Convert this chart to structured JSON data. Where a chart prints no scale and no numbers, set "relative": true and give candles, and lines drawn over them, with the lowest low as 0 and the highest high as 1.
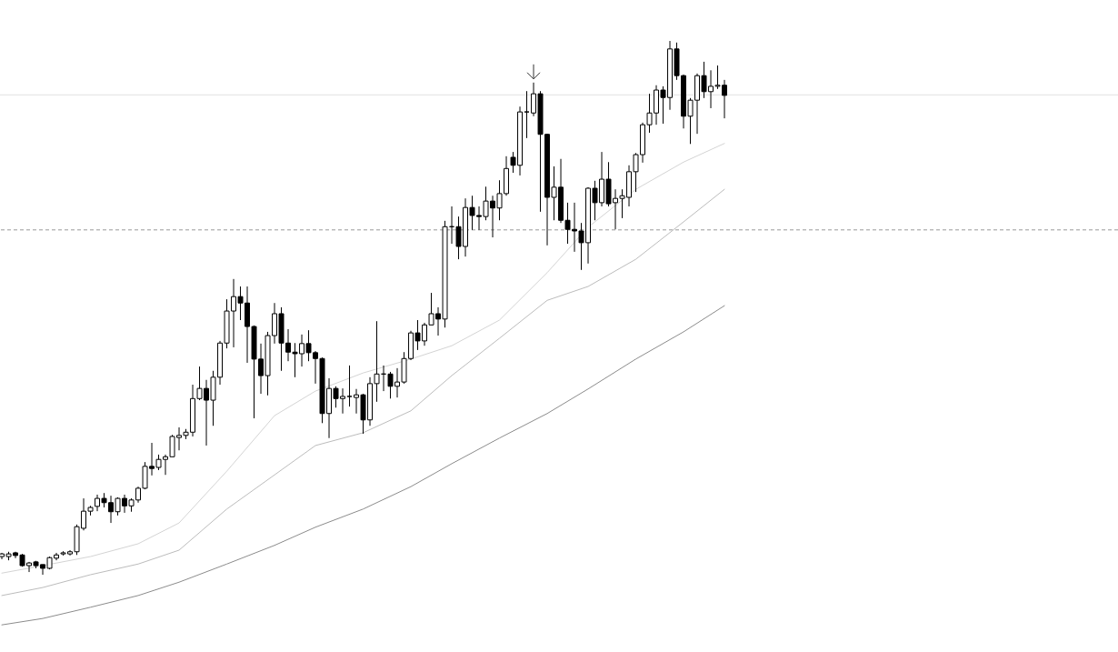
{
  "chart_data": {
    "type": "candlestick",
    "relative": true,
    "categories": [
      null,
      null,
      null,
      null,
      null,
      null,
      null,
      null,
      null,
      null,
      null,
      null,
      null,
      null,
      null,
      null,
      null,
      null,
      null,
      null,
      null,
      null,
      null,
      null,
      null,
      null,
      null,
      null,
      null,
      null,
      null,
      null,
      null,
      null,
      null,
      null,
      null,
      null,
      null,
      null,
      null,
      null,
      null,
      null,
      null,
      null,
      null,
      null,
      null,
      null,
      null,
      null,
      null,
      null,
      null,
      null,
      null,
      null,
      null,
      null,
      null,
      null,
      null,
      null,
      null,
      null,
      null,
      null,
      null,
      null,
      null,
      null,
      null,
      null,
      null,
      null,
      null,
      null,
      null,
      null,
      null,
      null,
      null,
      null,
      null,
      null,
      null,
      null,
      null,
      null,
      null,
      null,
      null,
      null,
      null,
      null,
      null,
      null,
      null,
      null,
      null,
      null,
      null,
      null,
      null,
      null,
      null
    ],
    "ohlc": [
      [
        0.034,
        0.041,
        0.029,
        0.039
      ],
      [
        0.034,
        0.043,
        0.027,
        0.039
      ],
      [
        0.041,
        0.043,
        0.031,
        0.036
      ],
      [
        0.037,
        0.039,
        0.015,
        0.017
      ],
      [
        0.017,
        0.024,
        0.005,
        0.022
      ],
      [
        0.024,
        0.026,
        0.012,
        0.017
      ],
      [
        0.019,
        0.019,
        0,
        0.012
      ],
      [
        0.012,
        0.034,
        0.01,
        0.032
      ],
      [
        0.031,
        0.041,
        0.027,
        0.037
      ],
      [
        0.039,
        0.044,
        0.036,
        0.041
      ],
      [
        0.039,
        0.046,
        0.036,
        0.043
      ],
      [
        0.043,
        0.094,
        0.037,
        0.09
      ],
      [
        0.087,
        0.143,
        0.083,
        0.119
      ],
      [
        0.119,
        0.129,
        0.111,
        0.126
      ],
      [
        0.128,
        0.15,
        0.119,
        0.143
      ],
      [
        0.143,
        0.153,
        0.126,
        0.135
      ],
      [
        0.135,
        0.148,
        0.097,
        0.118
      ],
      [
        0.118,
        0.145,
        0.111,
        0.143
      ],
      [
        0.143,
        0.15,
        0.116,
        0.129
      ],
      [
        0.129,
        0.143,
        0.118,
        0.14
      ],
      [
        0.14,
        0.165,
        0.135,
        0.162
      ],
      [
        0.162,
        0.211,
        0.16,
        0.203
      ],
      [
        0.203,
        0.247,
        0.186,
        0.199
      ],
      [
        0.201,
        0.225,
        0.196,
        0.216
      ],
      [
        0.216,
        0.225,
        0.187,
        0.221
      ],
      [
        0.221,
        0.262,
        0.221,
        0.259
      ],
      [
        0.257,
        0.276,
        0.233,
        0.261
      ],
      [
        0.261,
        0.273,
        0.254,
        0.267
      ],
      [
        0.267,
        0.356,
        0.259,
        0.33
      ],
      [
        0.33,
        0.39,
        0.327,
        0.349
      ],
      [
        0.349,
        0.365,
        0.242,
        0.327
      ],
      [
        0.327,
        0.382,
        0.279,
        0.37
      ],
      [
        0.37,
        0.438,
        0.356,
        0.434
      ],
      [
        0.434,
        0.516,
        0.424,
        0.494
      ],
      [
        0.494,
        0.554,
        0.426,
        0.521
      ],
      [
        0.521,
        0.54,
        0.477,
        0.509
      ],
      [
        0.509,
        0.54,
        0.397,
        0.465
      ],
      [
        0.465,
        0.467,
        0.293,
        0.404
      ],
      [
        0.404,
        0.433,
        0.339,
        0.373
      ],
      [
        0.373,
        0.455,
        0.336,
        0.448
      ],
      [
        0.448,
        0.509,
        0.433,
        0.489
      ],
      [
        0.489,
        0.501,
        0.382,
        0.434
      ],
      [
        0.434,
        0.46,
        0.4,
        0.417
      ],
      [
        0.417,
        0.434,
        0.37,
        0.414
      ],
      [
        0.414,
        0.45,
        0.39,
        0.433
      ],
      [
        0.433,
        0.458,
        0.4,
        0.416
      ],
      [
        0.416,
        0.419,
        0.358,
        0.405
      ],
      [
        0.405,
        0.407,
        0.284,
        0.302
      ],
      [
        0.302,
        0.368,
        0.256,
        0.349
      ],
      [
        0.349,
        0.353,
        0.313,
        0.33
      ],
      [
        0.33,
        0.349,
        0.302,
        0.334
      ],
      [
        0.334,
        0.392,
        0.315,
        0.334
      ],
      [
        0.332,
        0.348,
        0.302,
        0.337
      ],
      [
        0.337,
        0.339,
        0.264,
        0.29
      ],
      [
        0.29,
        0.37,
        0.279,
        0.358
      ],
      [
        0.358,
        0.475,
        0.324,
        0.376
      ],
      [
        0.376,
        0.392,
        0.344,
        0.376
      ],
      [
        0.376,
        0.38,
        0.33,
        0.353
      ],
      [
        0.353,
        0.387,
        0.332,
        0.361
      ],
      [
        0.361,
        0.417,
        0.358,
        0.405
      ],
      [
        0.405,
        0.457,
        0.402,
        0.453
      ],
      [
        0.453,
        0.477,
        0.421,
        0.438
      ],
      [
        0.438,
        0.472,
        0.429,
        0.468
      ],
      [
        0.468,
        0.528,
        0.468,
        0.489
      ],
      [
        0.489,
        0.501,
        0.448,
        0.479
      ],
      [
        0.479,
        0.663,
        0.463,
        0.652
      ],
      [
        0.652,
        0.69,
        0.62,
        0.652
      ],
      [
        0.652,
        0.671,
        0.591,
        0.615
      ],
      [
        0.615,
        0.705,
        0.596,
        0.688
      ],
      [
        0.688,
        0.71,
        0.646,
        0.673
      ],
      [
        0.673,
        0.69,
        0.646,
        0.671
      ],
      [
        0.671,
        0.727,
        0.664,
        0.7
      ],
      [
        0.7,
        0.71,
        0.632,
        0.687
      ],
      [
        0.687,
        0.739,
        0.664,
        0.714
      ],
      [
        0.714,
        0.784,
        0.71,
        0.761
      ],
      [
        0.782,
        0.792,
        0.753,
        0.767
      ],
      [
        0.767,
        0.877,
        0.748,
        0.867
      ],
      [
        0.867,
        0.906,
        0.818,
        0.867
      ],
      [
        0.865,
        0.922,
        0.859,
        0.901
      ],
      [
        0.901,
        0.906,
        0.68,
        0.825
      ],
      [
        0.825,
        0.826,
        0.617,
        0.707
      ],
      [
        0.707,
        0.765,
        0.664,
        0.726
      ],
      [
        0.726,
        0.779,
        0.659,
        0.664
      ],
      [
        0.664,
        0.697,
        0.62,
        0.647
      ],
      [
        0.647,
        0.697,
        0.605,
        0.644
      ],
      [
        0.644,
        0.659,
        0.571,
        0.622
      ],
      [
        0.622,
        0.726,
        0.583,
        0.724
      ],
      [
        0.724,
        0.738,
        0.664,
        0.697
      ],
      [
        0.697,
        0.792,
        0.69,
        0.741
      ],
      [
        0.741,
        0.773,
        0.69,
        0.695
      ],
      [
        0.697,
        0.722,
        0.647,
        0.705
      ],
      [
        0.705,
        0.722,
        0.668,
        0.71
      ],
      [
        0.707,
        0.767,
        0.69,
        0.755
      ],
      [
        0.755,
        0.79,
        0.717,
        0.787
      ],
      [
        0.787,
        0.847,
        0.772,
        0.843
      ],
      [
        0.843,
        0.901,
        0.828,
        0.865
      ],
      [
        0.865,
        0.917,
        0.843,
        0.908
      ],
      [
        0.908,
        0.915,
        0.845,
        0.894
      ],
      [
        0.894,
        1,
        0.871,
        0.985
      ],
      [
        0.985,
        0.997,
        0.927,
        0.935
      ],
      [
        0.935,
        0.937,
        0.836,
        0.859
      ],
      [
        0.859,
        0.893,
        0.807,
        0.889
      ],
      [
        0.889,
        0.939,
        0.826,
        0.935
      ],
      [
        0.935,
        0.961,
        0.893,
        0.905
      ],
      [
        0.905,
        0.945,
        0.874,
        0.915
      ],
      [
        0.915,
        0.954,
        0.91,
        0.917
      ],
      [
        0.917,
        0.927,
        0.855,
        0.898
      ]
    ],
    "series": [
      {
        "type": "line",
        "color": "#d4d4d4",
        "values": [
          0.003,
          null,
          null,
          null,
          null,
          null,
          0.017,
          null,
          null,
          null,
          null,
          null,
          null,
          0.034,
          null,
          null,
          null,
          null,
          null,
          null,
          0.058,
          null,
          null,
          null,
          null,
          null,
          0.097,
          null,
          null,
          null,
          null,
          null,
          null,
          0.194,
          null,
          null,
          null,
          null,
          null,
          null,
          0.298,
          null,
          null,
          null,
          null,
          null,
          0.344,
          null,
          null,
          null,
          null,
          null,
          null,
          0.378,
          null,
          null,
          null,
          null,
          null,
          null,
          0.404,
          null,
          null,
          null,
          null,
          null,
          0.429,
          null,
          null,
          null,
          null,
          null,
          null,
          0.477,
          null,
          null,
          null,
          null,
          null,
          null,
          0.566,
          null,
          null,
          null,
          null,
          null,
          0.651,
          null,
          null,
          null,
          null,
          null,
          null,
          0.722,
          null,
          null,
          null,
          null,
          null,
          null,
          0.773,
          null,
          null,
          null,
          null,
          null,
          0.808
        ]
      },
      {
        "type": "line",
        "color": "#bcbcbc",
        "values": [
          -0.039,
          null,
          null,
          null,
          null,
          null,
          -0.024,
          null,
          null,
          null,
          null,
          null,
          null,
          0,
          null,
          null,
          null,
          null,
          null,
          null,
          0.02,
          null,
          null,
          null,
          null,
          null,
          0.046,
          null,
          null,
          null,
          null,
          null,
          null,
          0.123,
          null,
          null,
          null,
          null,
          null,
          null,
          0.187,
          null,
          null,
          null,
          null,
          null,
          0.242,
          null,
          null,
          null,
          null,
          null,
          null,
          0.266,
          null,
          null,
          null,
          null,
          null,
          null,
          0.307,
          null,
          null,
          null,
          null,
          null,
          0.373,
          null,
          null,
          null,
          null,
          null,
          null,
          0.443,
          null,
          null,
          null,
          null,
          null,
          null,
          0.514,
          null,
          null,
          null,
          null,
          null,
          0.54,
          null,
          null,
          null,
          null,
          null,
          null,
          0.591,
          null,
          null,
          null,
          null,
          null,
          null,
          0.661,
          null,
          null,
          null,
          null,
          null,
          0.722
        ]
      },
      {
        "type": "line",
        "color": "#8c8c8c",
        "values": [
          -0.094,
          null,
          null,
          null,
          null,
          null,
          -0.082,
          null,
          null,
          null,
          null,
          null,
          null,
          -0.061,
          null,
          null,
          null,
          null,
          null,
          null,
          -0.039,
          null,
          null,
          null,
          null,
          null,
          -0.014,
          null,
          null,
          null,
          null,
          null,
          null,
          0.02,
          null,
          null,
          null,
          null,
          null,
          null,
          0.055,
          null,
          null,
          null,
          null,
          null,
          0.089,
          null,
          null,
          null,
          null,
          null,
          null,
          0.123,
          null,
          null,
          null,
          null,
          null,
          null,
          0.165,
          null,
          null,
          null,
          null,
          null,
          0.208,
          null,
          null,
          null,
          null,
          null,
          null,
          0.256,
          null,
          null,
          null,
          null,
          null,
          null,
          0.302,
          null,
          null,
          null,
          null,
          null,
          0.348,
          null,
          null,
          null,
          null,
          null,
          null,
          0.404,
          null,
          null,
          null,
          null,
          null,
          null,
          0.455,
          null,
          null,
          null,
          null,
          null,
          0.504
        ]
      }
    ],
    "ref_lines": [
      {
        "axis": "y",
        "value": 0.899,
        "color": "#e2e2e2",
        "line_style": "solid"
      },
      {
        "axis": "y",
        "value": 0.646,
        "color": "#9a9a9a",
        "line_style": "dashed"
      }
    ]
  }
}
